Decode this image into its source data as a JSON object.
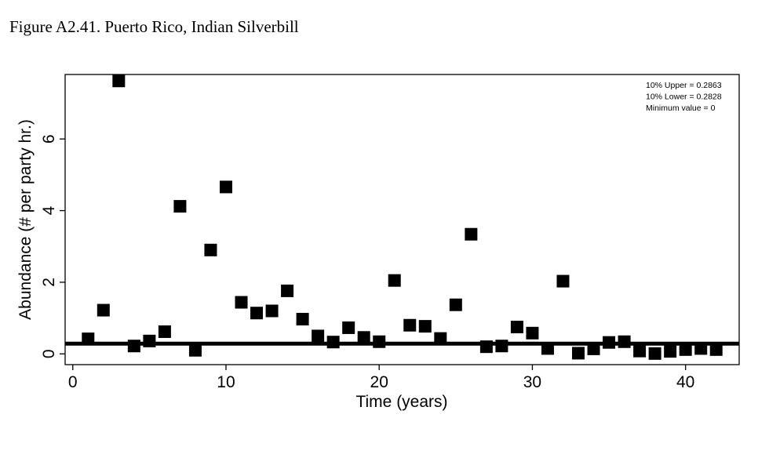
{
  "figure_title": "Figure A2.41. Puerto Rico, Indian Silverbill",
  "chart_data": {
    "type": "scatter",
    "xlabel": "Time (years)",
    "ylabel": "Abundance (# per party hr.)",
    "xlim": [
      -0.5,
      43.5
    ],
    "ylim": [
      -0.3,
      7.8
    ],
    "x_ticks": [
      0,
      10,
      20,
      30,
      40
    ],
    "y_ticks": [
      0,
      2,
      4,
      6
    ],
    "grid": false,
    "reference_line": {
      "y": 0.2845
    },
    "annotations": [
      "10% Upper =  0.2863",
      "10% Lower =  0.2828",
      "Minimum value =  0"
    ],
    "x": [
      1,
      2,
      3,
      4,
      5,
      6,
      7,
      8,
      9,
      10,
      11,
      12,
      13,
      14,
      15,
      16,
      17,
      18,
      19,
      20,
      21,
      22,
      23,
      24,
      25,
      26,
      27,
      28,
      29,
      30,
      31,
      32,
      33,
      34,
      35,
      36,
      37,
      38,
      39,
      40,
      41,
      42
    ],
    "y": [
      0.42,
      1.22,
      7.62,
      0.22,
      0.36,
      0.62,
      4.12,
      0.1,
      2.9,
      4.66,
      1.44,
      1.14,
      1.2,
      1.76,
      0.97,
      0.5,
      0.33,
      0.73,
      0.46,
      0.34,
      2.05,
      0.8,
      0.77,
      0.43,
      1.37,
      3.34,
      0.2,
      0.22,
      0.75,
      0.58,
      0.15,
      2.03,
      0.02,
      0.14,
      0.32,
      0.34,
      0.08,
      0.01,
      0.07,
      0.12,
      0.15,
      0.12
    ]
  }
}
